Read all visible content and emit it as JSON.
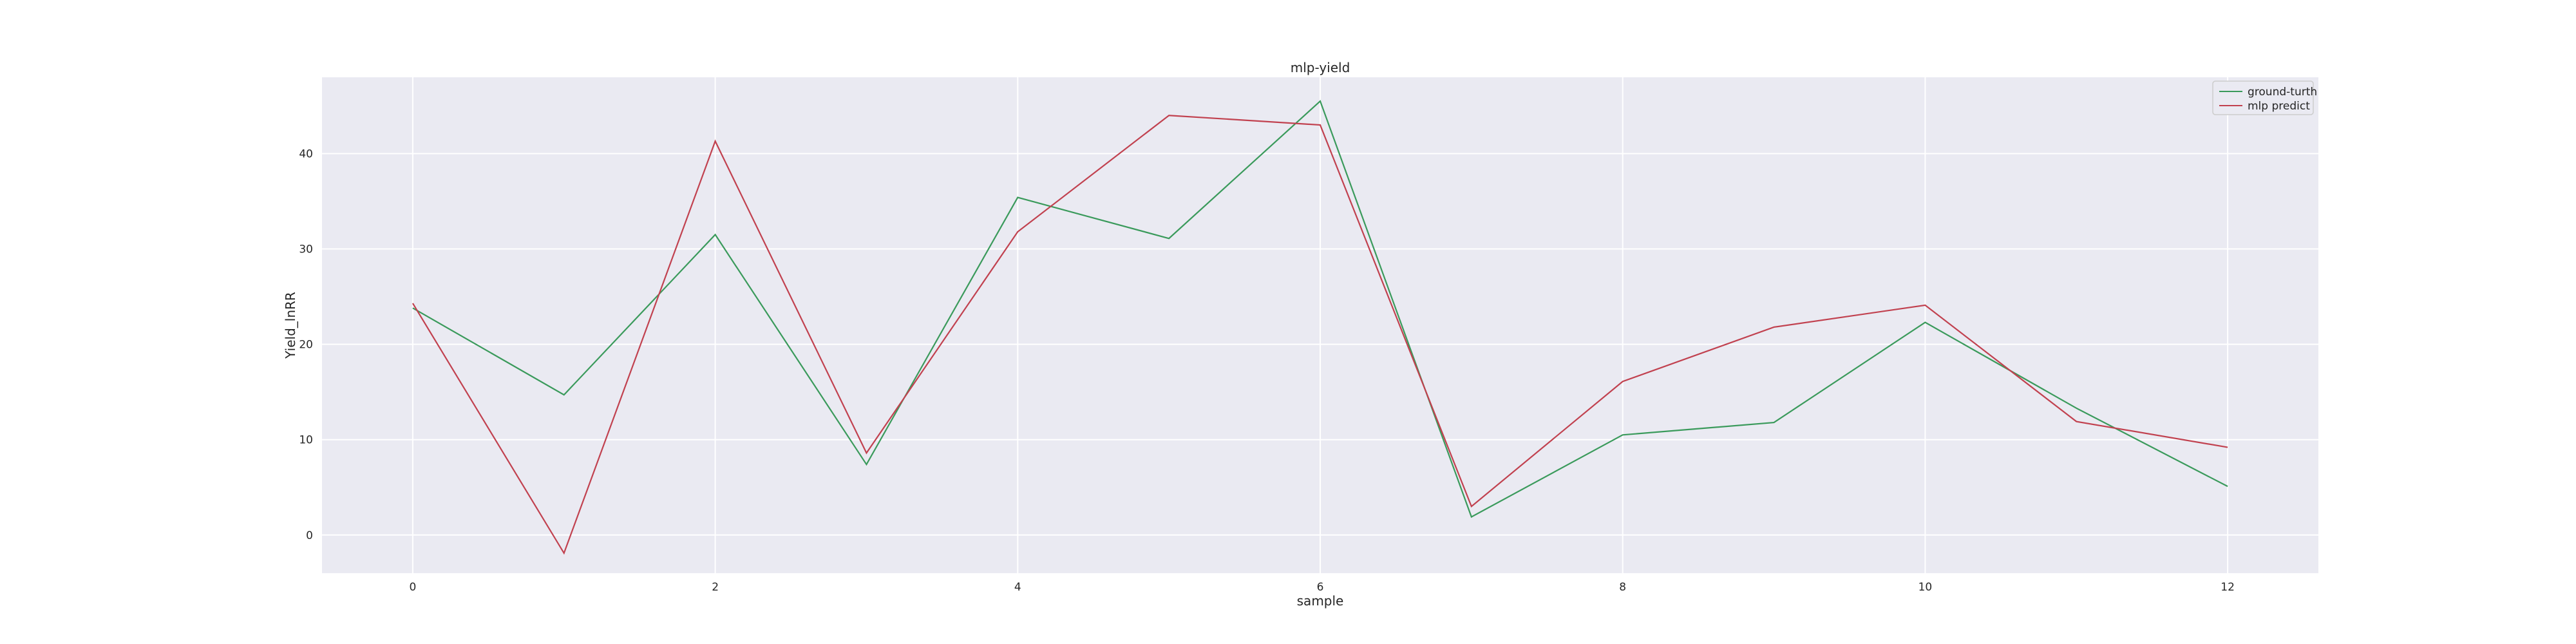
{
  "chart_data": {
    "type": "line",
    "title": "mlp-yield",
    "xlabel": "sample",
    "ylabel": "Yield_lnRR",
    "xlim": [
      -0.6,
      12.6
    ],
    "ylim": [
      -4,
      48
    ],
    "xticks": [
      0,
      2,
      4,
      6,
      8,
      10,
      12
    ],
    "yticks": [
      0,
      10,
      20,
      30,
      40
    ],
    "grid": true,
    "legend_position": "top-right",
    "x": [
      0,
      1,
      2,
      3,
      4,
      5,
      6,
      7,
      8,
      9,
      10,
      11,
      12
    ],
    "series": [
      {
        "name": "ground-turth",
        "color": "#3a9a5b",
        "values": [
          23.8,
          14.7,
          31.5,
          7.4,
          35.4,
          31.1,
          45.5,
          1.9,
          10.5,
          11.8,
          22.3,
          13.3,
          5.1
        ]
      },
      {
        "name": "mlp predict",
        "color": "#c1414f",
        "values": [
          24.3,
          -1.9,
          41.3,
          8.6,
          31.8,
          44.0,
          43.0,
          3.0,
          16.1,
          21.8,
          24.1,
          11.9,
          9.2
        ]
      }
    ]
  }
}
